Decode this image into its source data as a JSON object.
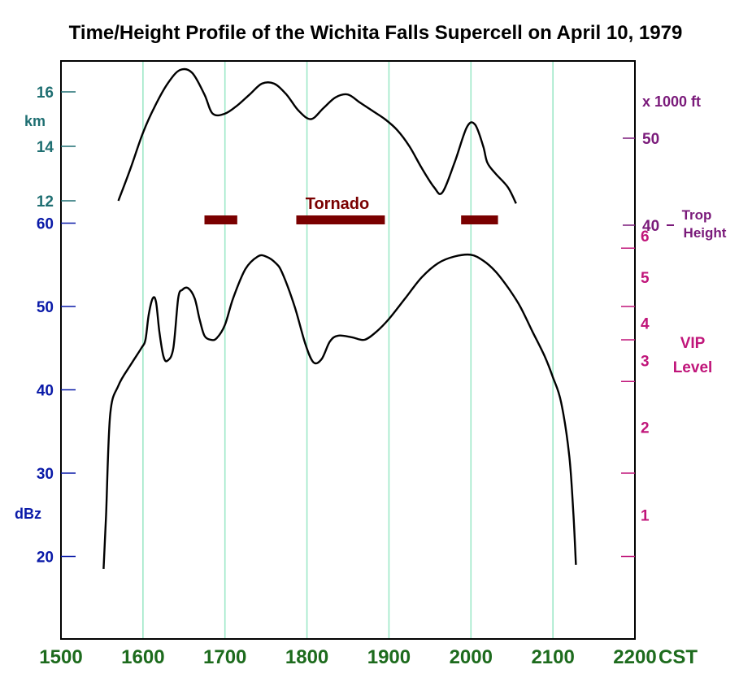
{
  "chart_data": {
    "type": "line",
    "title": "Time/Height Profile of the Wichita Falls Supercell on April 10, 1979",
    "x_axis": {
      "ticks": [
        "1500",
        "1600",
        "1700",
        "1800",
        "1900",
        "2000",
        "2100",
        "2200"
      ],
      "unit": "CST",
      "range": [
        1500,
        2200
      ],
      "grid": true
    },
    "axes_left": {
      "height": {
        "label": "km",
        "ticks": [
          "12",
          "14",
          "16"
        ]
      },
      "reflectivity": {
        "label": "dBz",
        "ticks": [
          "20",
          "30",
          "40",
          "50",
          "60"
        ]
      }
    },
    "axes_right": {
      "height": {
        "label": "x 1000 ft",
        "ticks": [
          "40",
          "50"
        ]
      },
      "vip": {
        "label_line1": "VIP",
        "label_line2": "Level",
        "ticks": [
          "1",
          "2",
          "3",
          "4",
          "5",
          "6"
        ]
      }
    },
    "annotations": {
      "trop_line1": "Trop",
      "trop_line2": "Height",
      "tornado": "Tornado"
    },
    "series": [
      {
        "name": "",
        "axis": "height_km",
        "x": [
          1570,
          1585,
          1600,
          1615,
          1630,
          1645,
          1660,
          1675,
          1685,
          1700,
          1715,
          1730,
          1745,
          1760,
          1775,
          1790,
          1805,
          1820,
          1835,
          1850,
          1865,
          1880,
          1895,
          1910,
          1925,
          1940,
          1955,
          1965,
          1980,
          1995,
          2005,
          2015,
          2020,
          2030,
          2045,
          2055
        ],
        "y": [
          12.0,
          13.2,
          14.5,
          15.5,
          16.3,
          16.8,
          16.7,
          15.9,
          15.2,
          15.2,
          15.5,
          15.9,
          16.3,
          16.3,
          15.9,
          15.3,
          15.0,
          15.4,
          15.8,
          15.9,
          15.6,
          15.3,
          15.0,
          14.6,
          14.0,
          13.2,
          12.5,
          12.3,
          13.4,
          14.7,
          14.8,
          14.0,
          13.4,
          13.0,
          12.5,
          11.9
        ]
      },
      {
        "name": "",
        "axis": "dBz",
        "x": [
          1552,
          1555,
          1560,
          1570,
          1585,
          1598,
          1603,
          1607,
          1612,
          1616,
          1620,
          1625,
          1630,
          1637,
          1643,
          1648,
          1655,
          1663,
          1669,
          1675,
          1683,
          1690,
          1700,
          1710,
          1725,
          1740,
          1750,
          1762,
          1770,
          1785,
          1798,
          1808,
          1818,
          1828,
          1838,
          1855,
          1870,
          1885,
          1900,
          1920,
          1940,
          1960,
          1980,
          2000,
          2015,
          2030,
          2045,
          2060,
          2075,
          2090,
          2100,
          2110,
          2120,
          2125,
          2128
        ],
        "y": [
          18.5,
          25,
          37,
          40.5,
          43,
          45,
          46,
          49,
          51,
          50.5,
          47,
          44,
          43.5,
          45,
          51,
          52,
          52.2,
          51,
          48.5,
          46.5,
          46,
          46.2,
          47.8,
          51,
          54.5,
          56,
          56,
          55.2,
          54,
          50,
          45.5,
          43.3,
          43.7,
          45.8,
          46.5,
          46.3,
          46,
          47,
          48.5,
          51,
          53.5,
          55.2,
          56,
          56.2,
          55.5,
          54.2,
          52.3,
          50,
          47,
          44,
          41.5,
          38.5,
          32,
          25,
          19
        ]
      }
    ],
    "tornado_periods": [
      [
        1675,
        1715
      ],
      [
        1787,
        1895
      ],
      [
        1988,
        2033
      ]
    ]
  }
}
